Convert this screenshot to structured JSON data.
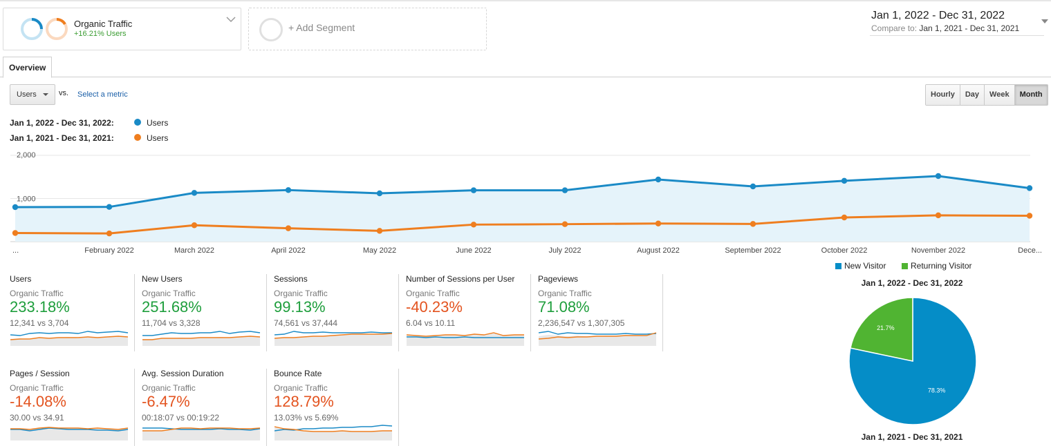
{
  "segments": {
    "active": {
      "name": "Organic Traffic",
      "change": "+16.21% Users",
      "icon": "segment-rings-icon"
    },
    "add": {
      "label": "+ Add Segment"
    }
  },
  "date_range": {
    "main": "Jan 1, 2022 - Dec 31, 2022",
    "compare_label": "Compare to:",
    "compare_value": "Jan 1, 2021 - Dec 31, 2021"
  },
  "tabs": {
    "overview": "Overview"
  },
  "controls": {
    "metric_select": "Users",
    "vs": "vs.",
    "select_metric": "Select a metric",
    "granularity": [
      "Hourly",
      "Day",
      "Week",
      "Month"
    ],
    "granularity_active": "Month"
  },
  "legend": [
    {
      "range": "Jan 1, 2022 - Dec 31, 2022:",
      "series": "Users",
      "color": "#1a8ac6"
    },
    {
      "range": "Jan 1, 2021 - Dec 31, 2021:",
      "series": "Users",
      "color": "#ef7e1f"
    }
  ],
  "chart_data": {
    "type": "line",
    "y_tick_labels": [
      "2,000",
      "1,000"
    ],
    "ylim": [
      0,
      2000
    ],
    "grid": true,
    "x": [
      "...",
      "February 2022",
      "March 2022",
      "April 2022",
      "May 2022",
      "June 2022",
      "July 2022",
      "August 2022",
      "September 2022",
      "October 2022",
      "November 2022",
      "Dece..."
    ],
    "series": [
      {
        "name": "Users",
        "period": "Jan 1, 2022 - Dec 31, 2022",
        "color": "#1a8ac6",
        "values": [
          800,
          805,
          1130,
          1195,
          1120,
          1190,
          1190,
          1440,
          1280,
          1410,
          1520,
          1240
        ]
      },
      {
        "name": "Users",
        "period": "Jan 1, 2021 - Dec 31, 2021",
        "color": "#ef7e1f",
        "values": [
          200,
          190,
          380,
          310,
          250,
          395,
          405,
          420,
          410,
          560,
          610,
          600
        ]
      }
    ]
  },
  "scorecards": [
    {
      "title": "Users",
      "segment": "Organic Traffic",
      "change": "233.18%",
      "trend": "good",
      "compare": "12,341 vs 3,704"
    },
    {
      "title": "New Users",
      "segment": "Organic Traffic",
      "change": "251.68%",
      "trend": "good",
      "compare": "11,704 vs 3,328"
    },
    {
      "title": "Sessions",
      "segment": "Organic Traffic",
      "change": "99.13%",
      "trend": "good",
      "compare": "74,561 vs 37,444"
    },
    {
      "title": "Number of Sessions per User",
      "segment": "Organic Traffic",
      "change": "-40.23%",
      "trend": "bad",
      "compare": "6.04 vs 10.11"
    },
    {
      "title": "Pageviews",
      "segment": "Organic Traffic",
      "change": "71.08%",
      "trend": "good",
      "compare": "2,236,547 vs 1,307,305"
    },
    {
      "title": "Pages / Session",
      "segment": "Organic Traffic",
      "change": "-14.08%",
      "trend": "bad",
      "compare": "30.00 vs 34.91"
    },
    {
      "title": "Avg. Session Duration",
      "segment": "Organic Traffic",
      "change": "-6.47%",
      "trend": "bad",
      "compare": "00:18:07 vs 00:19:22"
    },
    {
      "title": "Bounce Rate",
      "segment": "Organic Traffic",
      "change": "128.79%",
      "trend": "bad",
      "compare": "13.03% vs 5.69%"
    }
  ],
  "pie": {
    "legend": [
      {
        "label": "New Visitor",
        "color": "#058dc7"
      },
      {
        "label": "Returning Visitor",
        "color": "#50b432"
      }
    ],
    "top_label": "Jan 1, 2022 - Dec 31, 2022",
    "bottom_label": "Jan 1, 2021 - Dec 31, 2021",
    "slices": [
      {
        "label": "New Visitor",
        "percent": 78.3,
        "text": "78.3%",
        "color": "#058dc7"
      },
      {
        "label": "Returning Visitor",
        "percent": 21.7,
        "text": "21.7%",
        "color": "#50b432"
      }
    ]
  }
}
